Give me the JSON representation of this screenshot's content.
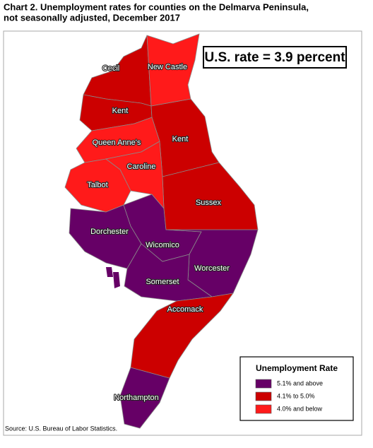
{
  "title": [
    "Chart 2. Unemployment rates for counties on the Delmarva Peninsula,",
    "not seasonally adjusted, December 2017"
  ],
  "callout": "U.S. rate = 3.9 percent",
  "legend": {
    "title": "Unemployment Rate",
    "items": [
      {
        "label": "5.1% and above",
        "color": "#660066",
        "counties": [
          "Dorchester",
          "Wicomico",
          "Worcester",
          "Somerset",
          "Northampton"
        ]
      },
      {
        "label": "4.1% to 5.0%",
        "color": "#cc0000",
        "counties": [
          "Cecil",
          "Kent",
          "Kent",
          "Sussex",
          "Accomack"
        ]
      },
      {
        "label": "4.0% and below",
        "color": "#ff1a1a",
        "counties": [
          "New Castle",
          "Queen Anne's",
          "Caroline",
          "Talbot"
        ]
      }
    ]
  },
  "source": "Source: U.S. Bureau of Labor Statistics."
}
